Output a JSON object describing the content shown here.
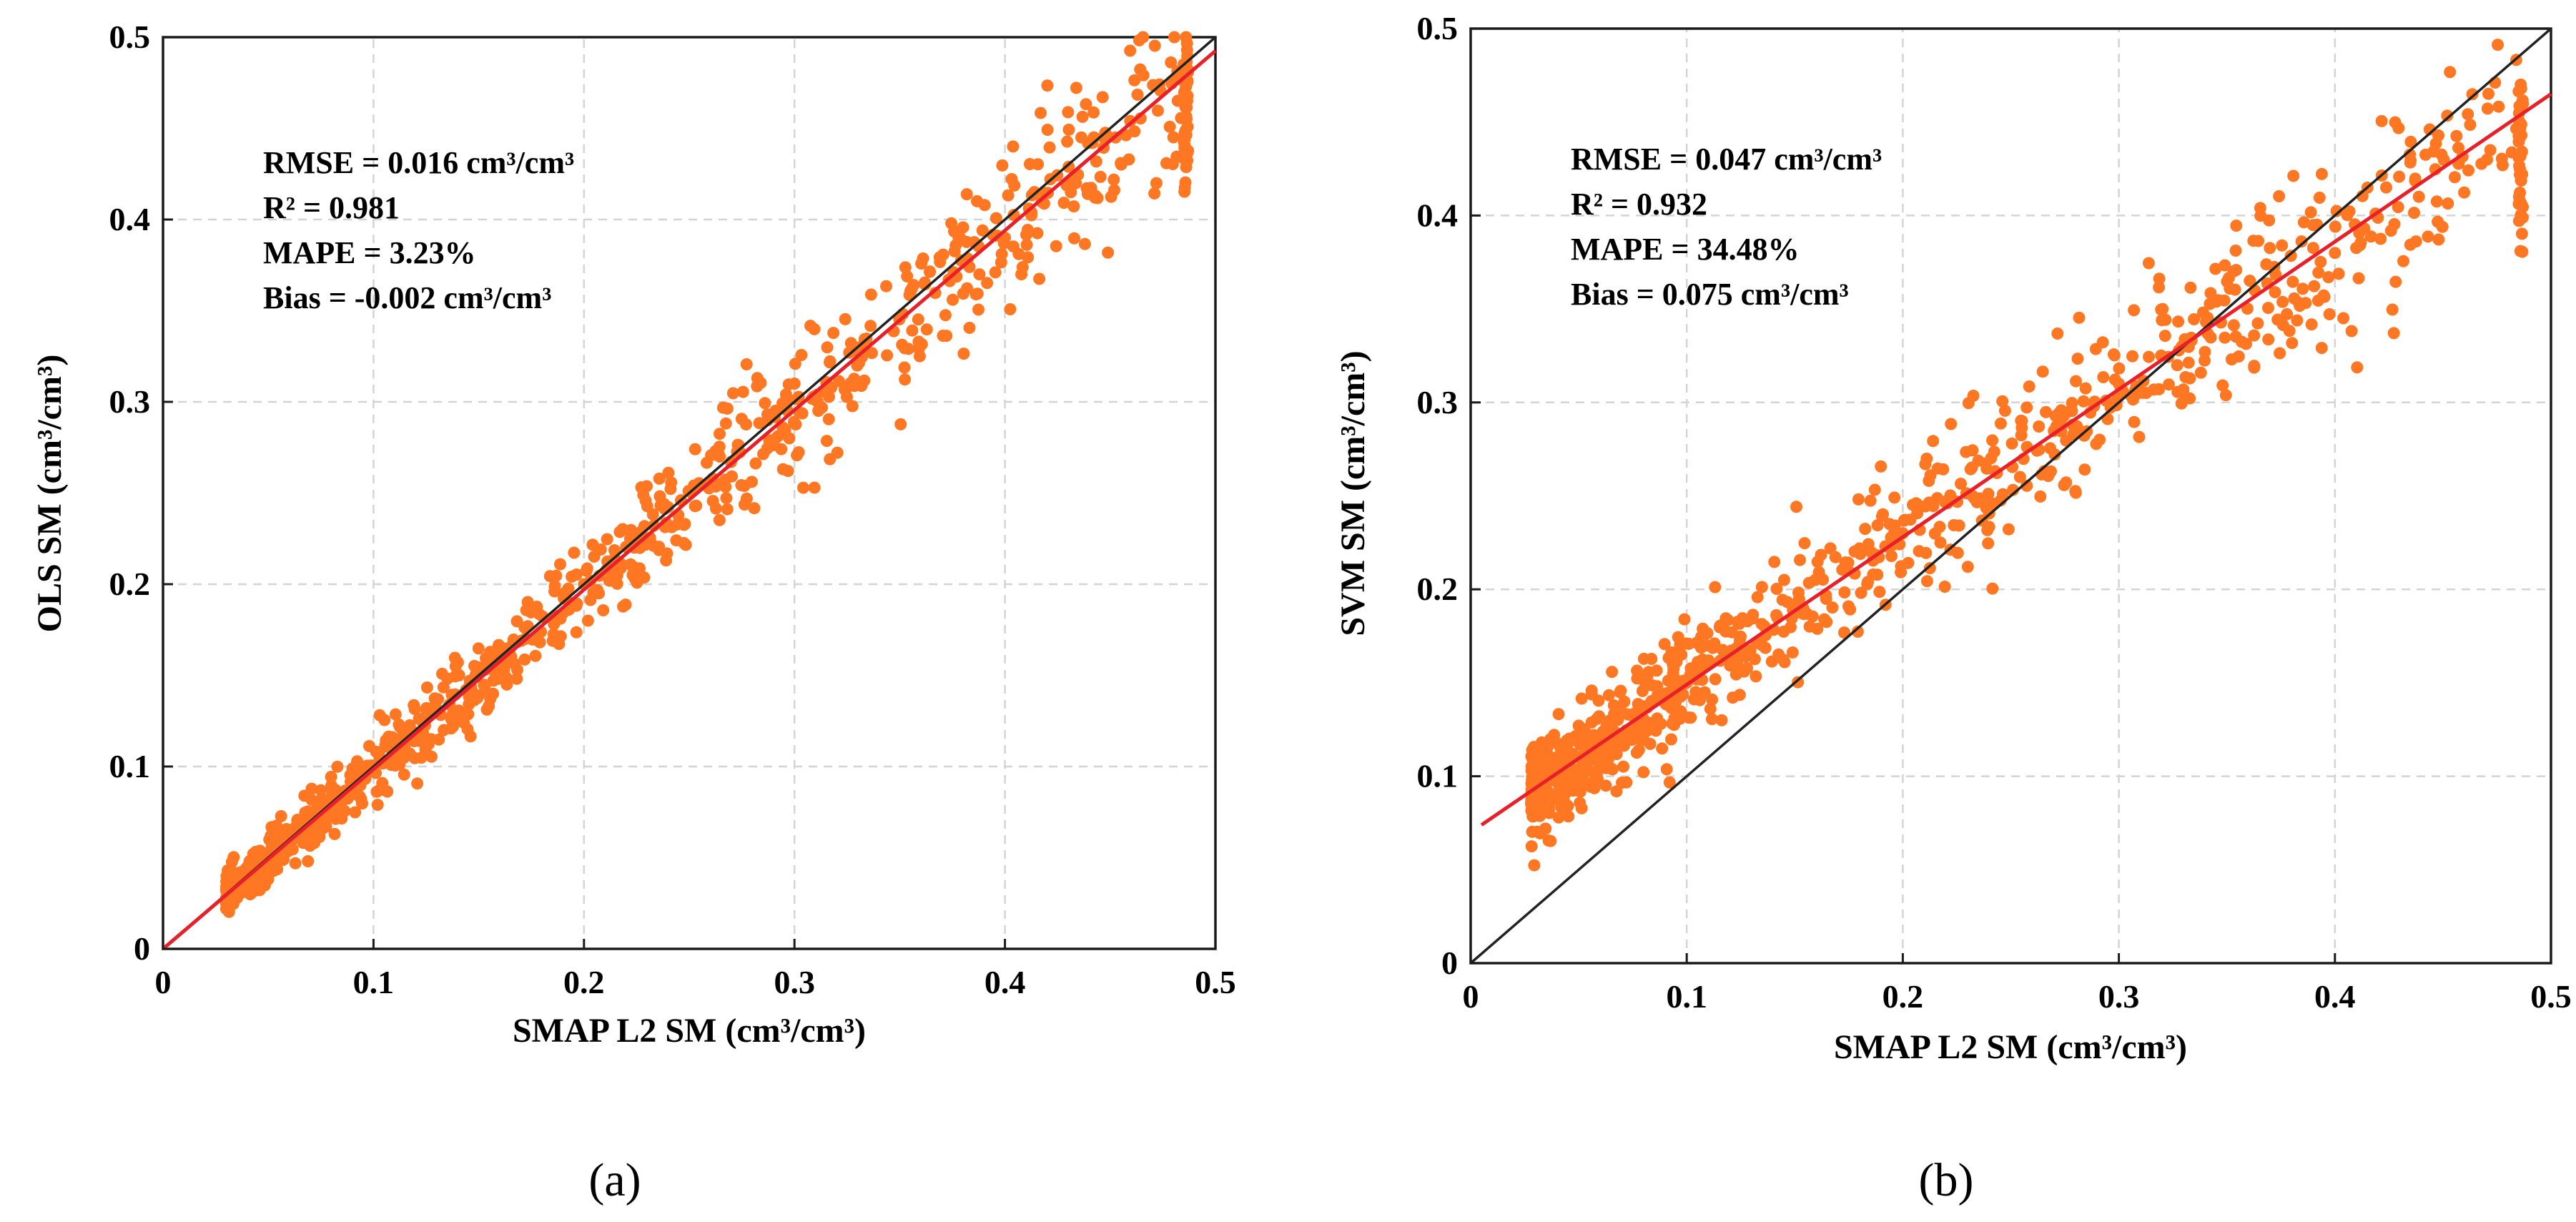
{
  "colors": {
    "points": "#ff7722",
    "fit_line": "#e8202a",
    "identity_line": "#222222"
  },
  "chart_data": [
    {
      "type": "scatter",
      "panel_label": "(a)",
      "xlabel": "SMAP L2 SM  (cm³/cm³)",
      "ylabel": "OLS SM (cm³/cm³)",
      "xlim": [
        0,
        0.5
      ],
      "ylim": [
        0,
        0.5
      ],
      "xticks": [
        "0",
        "0.1",
        "0.2",
        "0.3",
        "0.4",
        "0.5"
      ],
      "yticks": [
        "0",
        "0.1",
        "0.2",
        "0.3",
        "0.4",
        "0.5"
      ],
      "grid": true,
      "stats": [
        "RMSE = 0.016 cm³/cm³",
        "R² = 0.981",
        "MAPE = 3.23%",
        "Bias = -0.002 cm³/cm³"
      ],
      "fit_line": {
        "slope": 0.985,
        "intercept": 0.0
      },
      "identity_line": true,
      "scatter_model": {
        "n_points": 900,
        "seed": 7,
        "x_min": 0.03,
        "x_max": 0.485,
        "x_skew": 1.7,
        "slope": 0.985,
        "intercept": 0.0,
        "noise_base": 0.004,
        "noise_scale": 0.045,
        "clip_x": 0.486,
        "clip_count": 45,
        "clip_y_range": [
          0.415,
          0.5
        ]
      },
      "sample_points": [
        [
          0.03,
          0.032
        ],
        [
          0.1,
          0.1
        ],
        [
          0.2,
          0.2
        ],
        [
          0.3,
          0.31
        ],
        [
          0.4,
          0.39
        ],
        [
          0.486,
          0.5
        ]
      ]
    },
    {
      "type": "scatter",
      "panel_label": "(b)",
      "xlabel": "SMAP L2 SM  (cm³/cm³)",
      "ylabel": "SVM SM (cm³/cm³)",
      "xlim": [
        0,
        0.5
      ],
      "ylim": [
        0,
        0.5
      ],
      "xticks": [
        "0",
        "0.1",
        "0.2",
        "0.3",
        "0.4",
        "0.5"
      ],
      "yticks": [
        "0",
        "0.1",
        "0.2",
        "0.3",
        "0.4",
        "0.5"
      ],
      "grid": true,
      "stats": [
        "RMSE = 0.047 cm³/cm³",
        "R² = 0.932",
        "MAPE = 34.48%",
        "Bias = 0.075 cm³/cm³"
      ],
      "fit_line": {
        "slope": 0.79,
        "intercept": 0.07,
        "x_start": 0.005
      },
      "identity_line": true,
      "scatter_model": {
        "n_points": 900,
        "seed": 19,
        "x_min": 0.028,
        "x_max": 0.485,
        "x_skew": 1.9,
        "slope": 0.79,
        "intercept": 0.07,
        "noise_base": 0.012,
        "noise_scale": 0.035,
        "clip_x": 0.486,
        "clip_count": 40,
        "clip_y_range": [
          0.38,
          0.47
        ]
      },
      "sample_points": [
        [
          0.03,
          0.1
        ],
        [
          0.1,
          0.15
        ],
        [
          0.2,
          0.23
        ],
        [
          0.3,
          0.31
        ],
        [
          0.4,
          0.38
        ],
        [
          0.486,
          0.47
        ]
      ]
    }
  ]
}
